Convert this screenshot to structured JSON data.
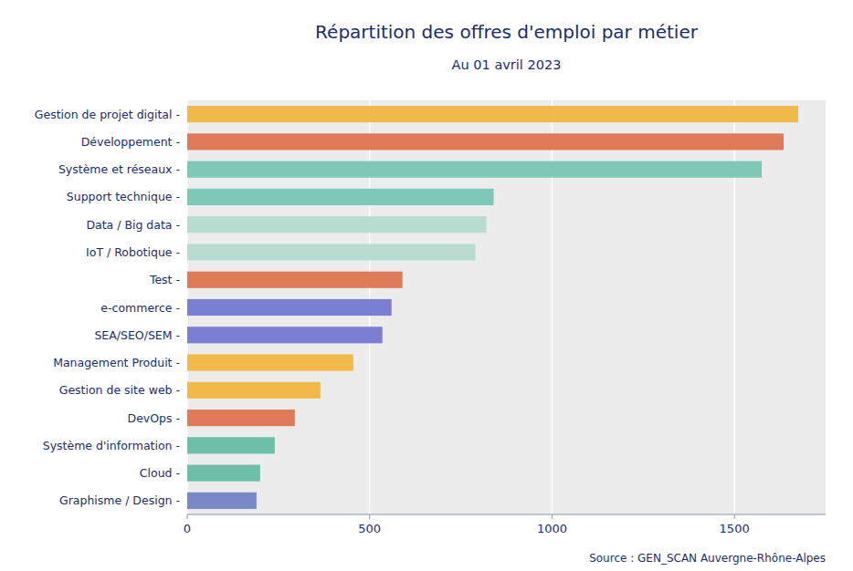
{
  "chart_data": {
    "type": "bar",
    "orientation": "horizontal",
    "title": "Répartition des offres d'emploi par métier",
    "subtitle": "Au 01 avril 2023",
    "source": "Source : GEN_SCAN Auvergne-Rhône-Alpes",
    "categories": [
      "Graphisme / Design -",
      "Cloud -",
      "Système d'information -",
      "DevOps -",
      "Gestion de site web -",
      "Management Produit -",
      "SEA/SEO/SEM -",
      "e-commerce -",
      "Test -",
      "IoT / Robotique -",
      "Data / Big data -",
      "Support technique -",
      "Système et réseaux -",
      "Développement -",
      "Gestion de projet digital -"
    ],
    "values": [
      190,
      200,
      240,
      295,
      365,
      455,
      535,
      560,
      590,
      790,
      820,
      840,
      1575,
      1635,
      1675
    ],
    "colors": [
      "#7b88c8",
      "#6dbfaa",
      "#6dbfaa",
      "#e07b5a",
      "#f0b94a",
      "#f0b94a",
      "#7b7fd4",
      "#7b7fd4",
      "#e07b5a",
      "#b8ddd0",
      "#b8ddd0",
      "#7ec8b8",
      "#7ec8b8",
      "#e07b5a",
      "#f0b94a"
    ],
    "xlim": [
      0,
      1750
    ],
    "xticks": [
      0,
      500,
      1000,
      1500
    ],
    "grid": true
  }
}
